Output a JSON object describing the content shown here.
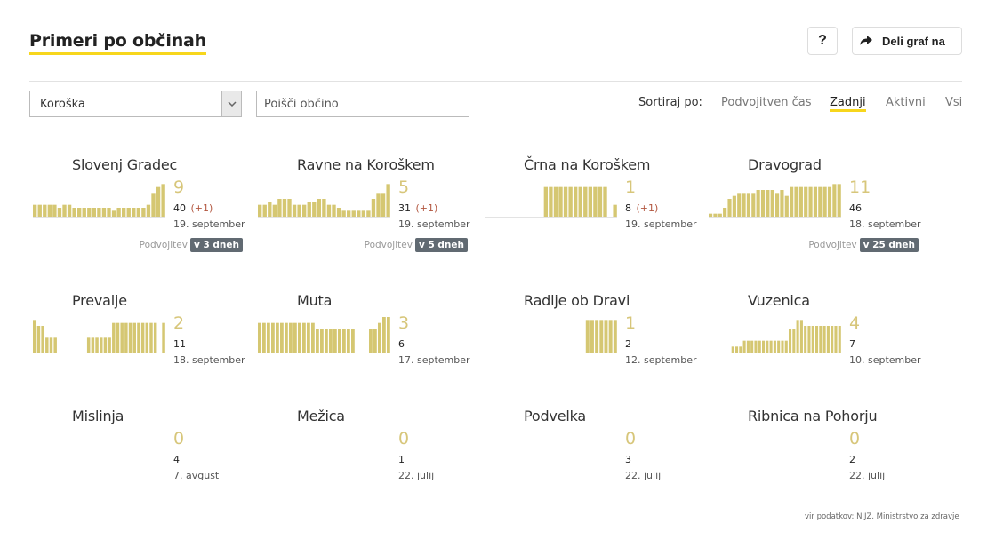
{
  "header": {
    "title": "Primeri po občinah",
    "help_label": "?",
    "share_label": "Deli graf na",
    "share_icon": "share-arrow-icon"
  },
  "filters": {
    "region_value": "Koroška",
    "search_placeholder": "Poišči občino",
    "sort_label": "Sortiraj po:",
    "sort_options": [
      "Podvojitven čas",
      "Zadnji",
      "Aktivni",
      "Vsi"
    ],
    "active_sort": "Zadnji"
  },
  "colors": {
    "accent": "#f7d61c",
    "bar": "#d5c772",
    "count": "#d7c67a",
    "delta": "#b2563f",
    "badge": "#616a72"
  },
  "municipalities": [
    {
      "name": "Slovenj Gradec",
      "count": "9",
      "total": "40",
      "delta": "(+1)",
      "date": "19. september",
      "doubling_label": "Podvojitev",
      "doubling_value": "v 3 dneh",
      "bars": [
        4,
        4,
        4,
        4,
        4,
        3,
        4,
        4,
        3,
        3,
        3,
        3,
        3,
        3,
        3,
        3,
        2,
        3,
        3,
        3,
        3,
        3,
        3,
        4,
        8,
        10,
        11
      ]
    },
    {
      "name": "Ravne na Koroškem",
      "count": "5",
      "total": "31",
      "delta": "(+1)",
      "date": "19. september",
      "doubling_label": "Podvojitev",
      "doubling_value": "v 5 dneh",
      "bars": [
        4,
        4,
        5,
        4,
        6,
        6,
        6,
        4,
        4,
        4,
        5,
        5,
        6,
        6,
        4,
        4,
        3,
        2,
        2,
        2,
        2,
        2,
        2,
        6,
        8,
        8,
        11
      ]
    },
    {
      "name": "Črna na Koroškem",
      "count": "1",
      "total": "8",
      "delta": "(+1)",
      "date": "19. september",
      "doubling_label": "",
      "doubling_value": "",
      "bars": [
        0,
        0,
        0,
        0,
        0,
        0,
        0,
        0,
        0,
        0,
        0,
        0,
        10,
        10,
        10,
        10,
        10,
        10,
        10,
        10,
        10,
        10,
        10,
        10,
        10,
        0,
        4
      ]
    },
    {
      "name": "Dravograd",
      "count": "11",
      "total": "46",
      "delta": "",
      "date": "18. september",
      "doubling_label": "Podvojitev",
      "doubling_value": "v 25 dneh",
      "bars": [
        1,
        1,
        1,
        3,
        6,
        7,
        8,
        8,
        8,
        8,
        9,
        9,
        9,
        9,
        8,
        9,
        7,
        10,
        10,
        10,
        10,
        10,
        10,
        10,
        10,
        10,
        11,
        11
      ]
    },
    {
      "name": "Prevalje",
      "count": "2",
      "total": "11",
      "delta": "",
      "date": "18. september",
      "doubling_label": "",
      "doubling_value": "",
      "bars": [
        11,
        9,
        9,
        5,
        5,
        5,
        0,
        0,
        0,
        0,
        0,
        0,
        0,
        5,
        5,
        5,
        5,
        5,
        5,
        10,
        10,
        10,
        10,
        10,
        10,
        10,
        10,
        10,
        10,
        10,
        0,
        10
      ]
    },
    {
      "name": "Muta",
      "count": "3",
      "total": "6",
      "delta": "",
      "date": "17. september",
      "doubling_label": "",
      "doubling_value": "",
      "bars": [
        10,
        10,
        10,
        10,
        10,
        10,
        10,
        10,
        10,
        10,
        10,
        10,
        10,
        8,
        8,
        8,
        8,
        8,
        8,
        8,
        8,
        8,
        0,
        0,
        0,
        8,
        8,
        10,
        12,
        12
      ]
    },
    {
      "name": "Radlje ob Dravi",
      "count": "1",
      "total": "2",
      "delta": "",
      "date": "12. september",
      "doubling_label": "",
      "doubling_value": "",
      "bars": [
        0,
        0,
        0,
        0,
        0,
        0,
        0,
        0,
        0,
        0,
        0,
        0,
        0,
        0,
        0,
        0,
        0,
        0,
        0,
        0,
        0,
        0,
        11,
        11,
        11,
        11,
        11,
        11,
        11
      ]
    },
    {
      "name": "Vuzenica",
      "count": "4",
      "total": "7",
      "delta": "",
      "date": "10. september",
      "doubling_label": "",
      "doubling_value": "",
      "bars": [
        0,
        0,
        0,
        0,
        0,
        0,
        2,
        2,
        2,
        4,
        4,
        4,
        4,
        4,
        4,
        4,
        4,
        4,
        4,
        4,
        4,
        8,
        8,
        11,
        11,
        9,
        9,
        9,
        9,
        9,
        9,
        9,
        9,
        9,
        9
      ]
    },
    {
      "name": "Mislinja",
      "count": "0",
      "total": "4",
      "delta": "",
      "date": "7. avgust",
      "doubling_label": "",
      "doubling_value": "",
      "bars": []
    },
    {
      "name": "Mežica",
      "count": "0",
      "total": "1",
      "delta": "",
      "date": "22. julij",
      "doubling_label": "",
      "doubling_value": "",
      "bars": []
    },
    {
      "name": "Podvelka",
      "count": "0",
      "total": "3",
      "delta": "",
      "date": "22. julij",
      "doubling_label": "",
      "doubling_value": "",
      "bars": []
    },
    {
      "name": "Ribnica na Pohorju",
      "count": "0",
      "total": "2",
      "delta": "",
      "date": "22. julij",
      "doubling_label": "",
      "doubling_value": "",
      "bars": []
    }
  ],
  "footer": {
    "source": "vir podatkov: NIJZ, Ministrstvo za zdravje"
  }
}
